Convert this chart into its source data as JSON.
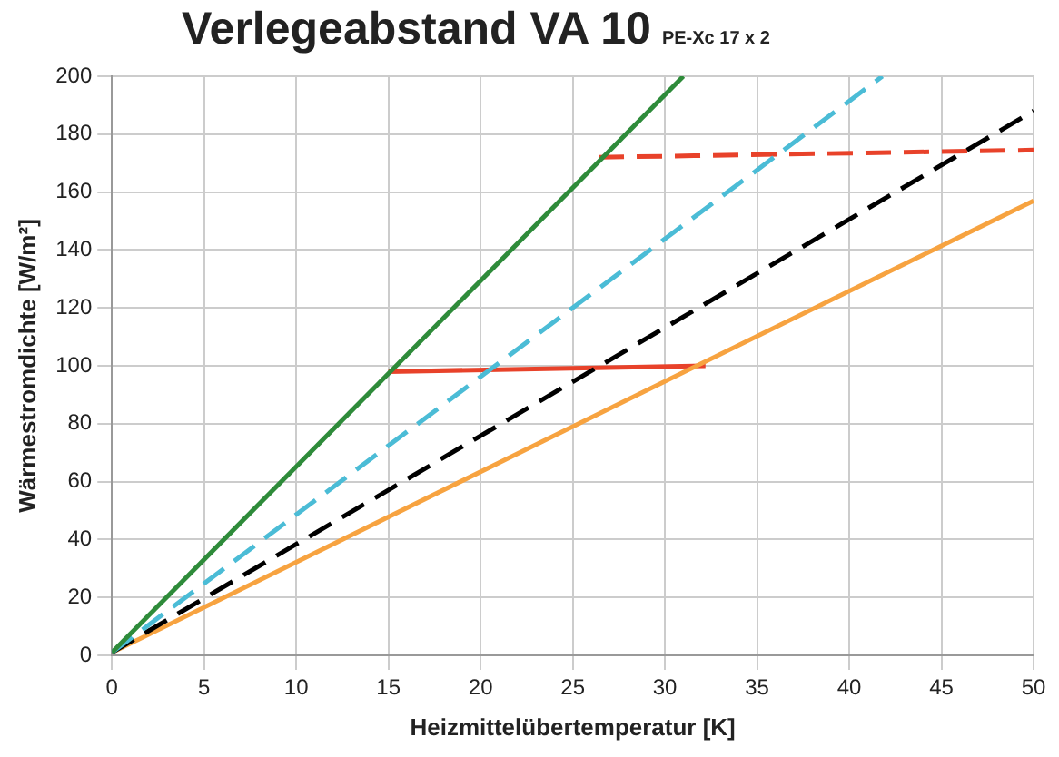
{
  "chart_data": {
    "type": "line",
    "title": "Verlegeabstand VA 10",
    "subtitle": "PE-Xc 17 x 2",
    "xlabel": "Heizmittelübertemperatur [K]",
    "ylabel": "Wärmestromdichte [W/m²]",
    "xlim": [
      0,
      50
    ],
    "ylim": [
      0,
      200
    ],
    "xticks": [
      0,
      5,
      10,
      15,
      20,
      25,
      30,
      35,
      40,
      45,
      50
    ],
    "yticks": [
      0,
      20,
      40,
      60,
      80,
      100,
      120,
      140,
      160,
      180,
      200
    ],
    "grid": true,
    "legend": false,
    "marker": "none",
    "series": [
      {
        "color": "#2e8b3a",
        "x": [
          0,
          31
        ],
        "values": [
          1,
          200
        ],
        "line_style": "solid"
      },
      {
        "color": "#4bbcd6",
        "x": [
          0,
          41.8
        ],
        "values": [
          1,
          200
        ],
        "line_style": "dashed"
      },
      {
        "color": "#000000",
        "x": [
          0,
          50
        ],
        "values": [
          1,
          188
        ],
        "line_style": "dashed"
      },
      {
        "color": "#f7a340",
        "x": [
          0,
          50
        ],
        "values": [
          1,
          157
        ],
        "line_style": "solid"
      },
      {
        "color": "#e8422a",
        "x": [
          15,
          32.2
        ],
        "values": [
          98,
          100
        ],
        "line_style": "solid"
      },
      {
        "color": "#e8422a",
        "x": [
          26.4,
          50
        ],
        "values": [
          172,
          174.5
        ],
        "line_style": "dashed"
      }
    ]
  }
}
